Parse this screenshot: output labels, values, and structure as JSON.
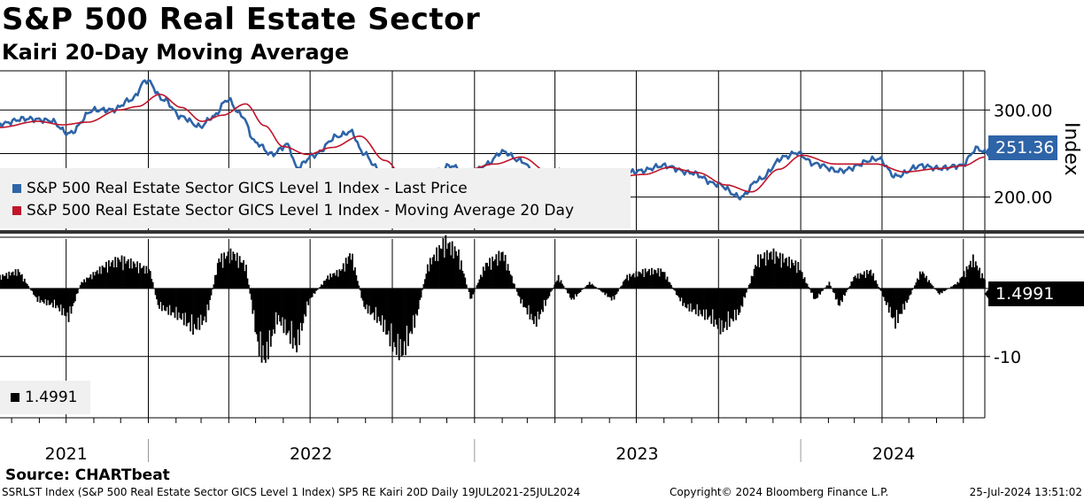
{
  "title": "S&P 500 Real Estate Sector",
  "subtitle": "Kairi 20-Day Moving Average",
  "source": "Source: CHARTbeat",
  "footer": {
    "left": "SSRLST Index (S&P 500 Real Estate Sector GICS Level 1 Index) SP5 RE Kairi 20D  Daily 19JUL2021-25JUL2024",
    "center": "Copyright© 2024 Bloomberg Finance L.P.",
    "right": "25-Jul-2024 13:51:02"
  },
  "colors": {
    "price": "#2e64a8",
    "ma": "#c0152a",
    "kairi": "#000000",
    "badge_price": "#2e64a8",
    "badge_kairi": "#000000"
  },
  "chart_data": [
    {
      "type": "line",
      "panel": "upper",
      "ylabel": "Index",
      "yticks": [
        "300.00",
        "200.00"
      ],
      "ylim": [
        160,
        345
      ],
      "xlim": [
        "2021-07-19",
        "2024-07-25"
      ],
      "xticks": [
        "2021",
        "2022",
        "2023",
        "2024"
      ],
      "last_value_label": "251.36",
      "legend_position": "left-middle",
      "series": [
        {
          "name": "S&P 500 Real Estate Sector GICS Level 1 Index - Last Price",
          "color": "#2e64a8",
          "points": [
            [
              "2021-07-19",
              284
            ],
            [
              "2021-08-16",
              290
            ],
            [
              "2021-09-13",
              288
            ],
            [
              "2021-10-04",
              273
            ],
            [
              "2021-11-01",
              300
            ],
            [
              "2021-11-22",
              300
            ],
            [
              "2021-12-13",
              312
            ],
            [
              "2021-12-30",
              334
            ],
            [
              "2022-01-18",
              312
            ],
            [
              "2022-02-07",
              292
            ],
            [
              "2022-02-28",
              281
            ],
            [
              "2022-03-14",
              292
            ],
            [
              "2022-03-31",
              312
            ],
            [
              "2022-04-14",
              295
            ],
            [
              "2022-05-02",
              262
            ],
            [
              "2022-05-19",
              249
            ],
            [
              "2022-06-06",
              260
            ],
            [
              "2022-06-16",
              234
            ],
            [
              "2022-07-05",
              248
            ],
            [
              "2022-08-01",
              270
            ],
            [
              "2022-08-16",
              275
            ],
            [
              "2022-08-29",
              251
            ],
            [
              "2022-09-15",
              233
            ],
            [
              "2022-09-30",
              213
            ],
            [
              "2022-10-13",
              201
            ],
            [
              "2022-10-31",
              225
            ],
            [
              "2022-11-21",
              230
            ],
            [
              "2022-12-05",
              236
            ],
            [
              "2022-12-28",
              223
            ],
            [
              "2023-01-13",
              237
            ],
            [
              "2023-02-02",
              252
            ],
            [
              "2023-02-21",
              242
            ],
            [
              "2023-03-16",
              219
            ],
            [
              "2023-04-05",
              230
            ],
            [
              "2023-05-04",
              220
            ],
            [
              "2023-06-01",
              222
            ],
            [
              "2023-07-05",
              230
            ],
            [
              "2023-07-31",
              236
            ],
            [
              "2023-08-31",
              228
            ],
            [
              "2023-09-29",
              215
            ],
            [
              "2023-10-26",
              200
            ],
            [
              "2023-11-15",
              220
            ],
            [
              "2023-12-14",
              246
            ],
            [
              "2023-12-27",
              251
            ],
            [
              "2024-01-17",
              238
            ],
            [
              "2024-02-13",
              230
            ],
            [
              "2024-03-28",
              244
            ],
            [
              "2024-04-16",
              224
            ],
            [
              "2024-05-15",
              236
            ],
            [
              "2024-06-03",
              233
            ],
            [
              "2024-06-28",
              236
            ],
            [
              "2024-07-17",
              256
            ],
            [
              "2024-07-25",
              251.36
            ]
          ]
        },
        {
          "name": "S&P 500 Real Estate Sector GICS Level 1 Index - Moving Average 20 Day",
          "color": "#c0152a",
          "points": [
            [
              "2021-07-19",
              280
            ],
            [
              "2021-08-30",
              287
            ],
            [
              "2021-09-27",
              283
            ],
            [
              "2021-10-25",
              286
            ],
            [
              "2021-11-29",
              300
            ],
            [
              "2021-12-20",
              304
            ],
            [
              "2022-01-14",
              318
            ],
            [
              "2022-02-07",
              303
            ],
            [
              "2022-03-02",
              287
            ],
            [
              "2022-03-25",
              294
            ],
            [
              "2022-04-20",
              307
            ],
            [
              "2022-05-11",
              282
            ],
            [
              "2022-06-01",
              258
            ],
            [
              "2022-06-28",
              249
            ],
            [
              "2022-07-26",
              257
            ],
            [
              "2022-08-26",
              270
            ],
            [
              "2022-09-23",
              242
            ],
            [
              "2022-10-21",
              211
            ],
            [
              "2022-11-16",
              220
            ],
            [
              "2022-12-19",
              230
            ],
            [
              "2023-01-24",
              238
            ],
            [
              "2023-02-22",
              246
            ],
            [
              "2023-03-30",
              225
            ],
            [
              "2023-04-27",
              224
            ],
            [
              "2023-05-31",
              222
            ],
            [
              "2023-07-10",
              226
            ],
            [
              "2023-08-07",
              234
            ],
            [
              "2023-09-08",
              228
            ],
            [
              "2023-10-09",
              214
            ],
            [
              "2023-11-07",
              206
            ],
            [
              "2023-12-08",
              232
            ],
            [
              "2024-01-02",
              248
            ],
            [
              "2024-02-09",
              238
            ],
            [
              "2024-03-25",
              238
            ],
            [
              "2024-04-26",
              229
            ],
            [
              "2024-06-07",
              233
            ],
            [
              "2024-07-01",
              236
            ],
            [
              "2024-07-25",
              246
            ]
          ]
        }
      ]
    },
    {
      "type": "bar",
      "panel": "lower",
      "yticks": [
        "0",
        "-10"
      ],
      "ylim": [
        -19,
        7
      ],
      "last_value_label": "1.4991",
      "series": [
        {
          "name": "1.4991",
          "color": "#000000",
          "points": [
            [
              "2021-07-19",
              2
            ],
            [
              "2021-08-09",
              3
            ],
            [
              "2021-08-30",
              -2
            ],
            [
              "2021-09-20",
              -3
            ],
            [
              "2021-10-04",
              -5
            ],
            [
              "2021-10-18",
              1
            ],
            [
              "2021-11-15",
              4
            ],
            [
              "2021-12-01",
              5
            ],
            [
              "2021-12-20",
              4
            ],
            [
              "2022-01-03",
              3
            ],
            [
              "2022-01-12",
              -3
            ],
            [
              "2022-02-07",
              -5
            ],
            [
              "2022-02-21",
              -7
            ],
            [
              "2022-03-07",
              -5
            ],
            [
              "2022-03-21",
              5
            ],
            [
              "2022-04-05",
              6
            ],
            [
              "2022-04-20",
              4
            ],
            [
              "2022-05-04",
              -10
            ],
            [
              "2022-05-12",
              -12
            ],
            [
              "2022-05-26",
              -5
            ],
            [
              "2022-06-16",
              -10
            ],
            [
              "2022-06-30",
              -2
            ],
            [
              "2022-07-21",
              2
            ],
            [
              "2022-08-04",
              3
            ],
            [
              "2022-08-16",
              6
            ],
            [
              "2022-08-30",
              -3
            ],
            [
              "2022-09-20",
              -6
            ],
            [
              "2022-10-03",
              -10
            ],
            [
              "2022-10-13",
              -11
            ],
            [
              "2022-10-28",
              -5
            ],
            [
              "2022-11-10",
              4
            ],
            [
              "2022-11-29",
              8
            ],
            [
              "2022-12-14",
              6
            ],
            [
              "2022-12-28",
              -2
            ],
            [
              "2023-01-13",
              4
            ],
            [
              "2023-02-02",
              6
            ],
            [
              "2023-02-21",
              -2
            ],
            [
              "2023-03-10",
              -6
            ],
            [
              "2023-03-17",
              -4
            ],
            [
              "2023-04-05",
              2
            ],
            [
              "2023-04-20",
              -2
            ],
            [
              "2023-05-10",
              1
            ],
            [
              "2023-06-05",
              -2
            ],
            [
              "2023-06-20",
              2
            ],
            [
              "2023-07-11",
              3
            ],
            [
              "2023-07-31",
              3
            ],
            [
              "2023-08-15",
              -1
            ],
            [
              "2023-08-24",
              -3
            ],
            [
              "2023-09-21",
              -5
            ],
            [
              "2023-10-05",
              -7
            ],
            [
              "2023-10-25",
              -4
            ],
            [
              "2023-11-14",
              5
            ],
            [
              "2023-11-30",
              6
            ],
            [
              "2023-12-14",
              5
            ],
            [
              "2023-12-29",
              4
            ],
            [
              "2024-01-17",
              -2
            ],
            [
              "2024-02-02",
              1
            ],
            [
              "2024-02-13",
              -3
            ],
            [
              "2024-03-01",
              2
            ],
            [
              "2024-03-20",
              3
            ],
            [
              "2024-04-16",
              -6
            ],
            [
              "2024-04-30",
              -2
            ],
            [
              "2024-05-15",
              3
            ],
            [
              "2024-06-04",
              -1
            ],
            [
              "2024-06-25",
              1
            ],
            [
              "2024-07-12",
              5
            ],
            [
              "2024-07-25",
              1.4991
            ]
          ]
        }
      ]
    }
  ]
}
